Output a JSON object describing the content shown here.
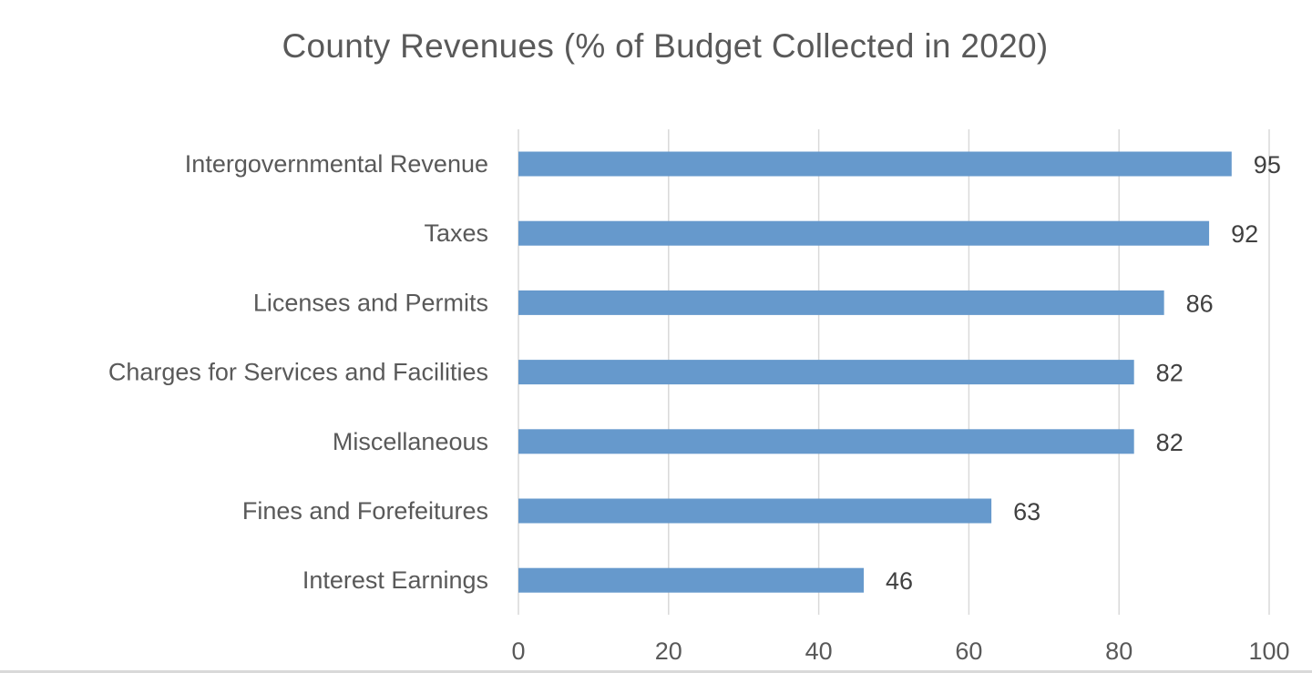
{
  "chart_data": {
    "type": "bar",
    "orientation": "horizontal",
    "title": "County Revenues (% of Budget Collected in 2020)",
    "xlabel": "",
    "ylabel": "",
    "categories": [
      "Intergovernmental Revenue",
      "Taxes",
      "Licenses and Permits",
      "Charges for Services and Facilities",
      "Miscellaneous",
      "Fines and Forefeitures",
      "Interest Earnings"
    ],
    "values": [
      95,
      92,
      86,
      82,
      82,
      63,
      46
    ],
    "xlim": [
      0,
      100
    ],
    "xticks": [
      0,
      20,
      40,
      60,
      80,
      100
    ],
    "grid": true,
    "legend": "none",
    "data_labels": true,
    "colors": {
      "bar": "#6699cc",
      "grid": "#d9d9d9",
      "text": "#595959"
    }
  }
}
